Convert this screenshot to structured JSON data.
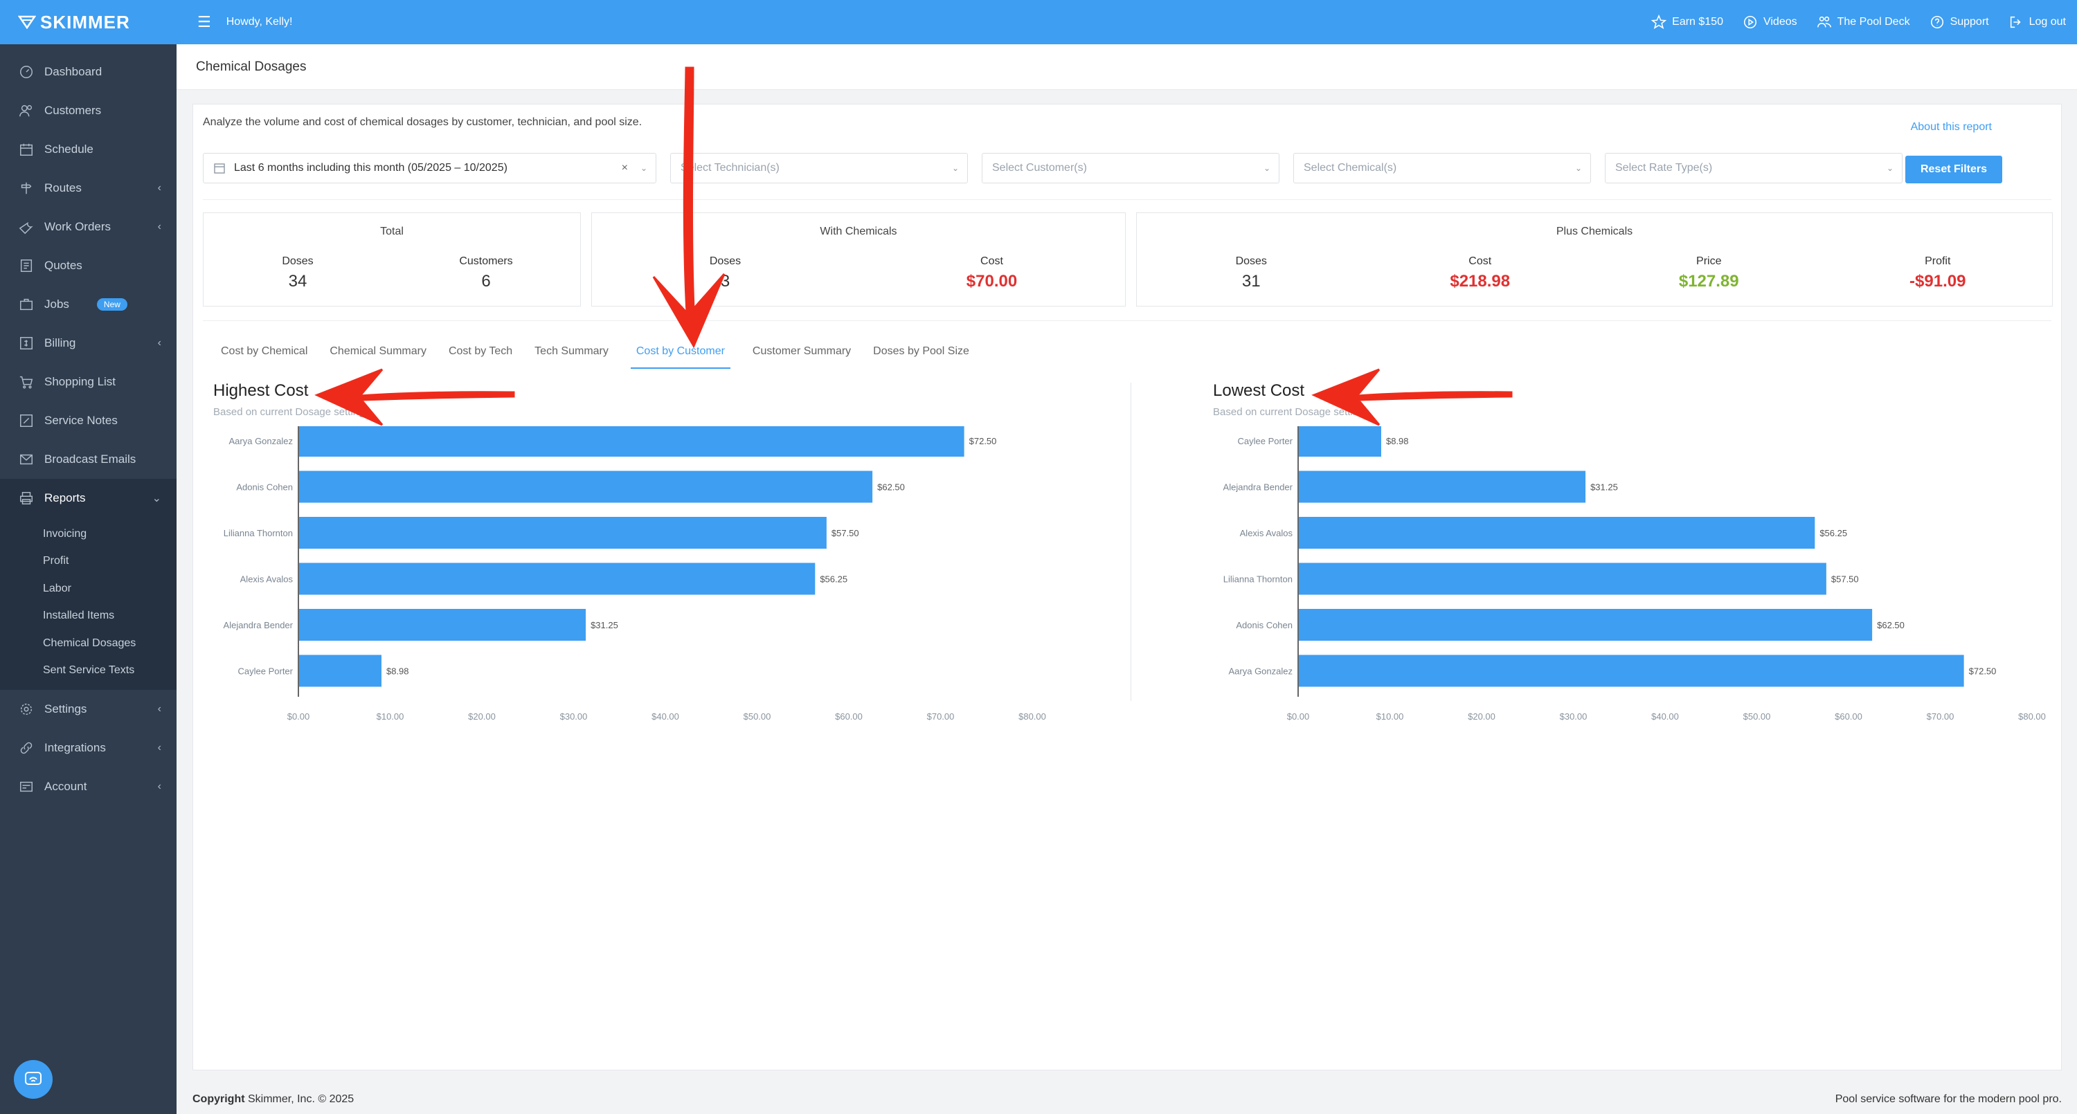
{
  "brand": {
    "name": "SKIMMER"
  },
  "topbar": {
    "greeting": "Howdy, Kelly!",
    "links": [
      {
        "label": "Earn $150",
        "icon": "star-icon"
      },
      {
        "label": "Videos",
        "icon": "play-icon"
      },
      {
        "label": "The Pool Deck",
        "icon": "people-icon"
      },
      {
        "label": "Support",
        "icon": "help-icon"
      },
      {
        "label": "Log out",
        "icon": "logout-icon"
      }
    ]
  },
  "sidebar": {
    "items": [
      {
        "label": "Dashboard",
        "icon": "dashboard-icon"
      },
      {
        "label": "Customers",
        "icon": "customers-icon"
      },
      {
        "label": "Schedule",
        "icon": "calendar-icon"
      },
      {
        "label": "Routes",
        "icon": "routes-icon",
        "chevron": true
      },
      {
        "label": "Work Orders",
        "icon": "wrench-icon",
        "chevron": true
      },
      {
        "label": "Quotes",
        "icon": "quote-icon"
      },
      {
        "label": "Jobs",
        "icon": "briefcase-icon",
        "badge": "New"
      },
      {
        "label": "Billing",
        "icon": "billing-icon",
        "chevron": true
      },
      {
        "label": "Shopping List",
        "icon": "cart-icon"
      },
      {
        "label": "Service Notes",
        "icon": "notes-icon"
      },
      {
        "label": "Broadcast Emails",
        "icon": "email-icon"
      },
      {
        "label": "Reports",
        "icon": "printer-icon",
        "chevron": true,
        "active": true
      }
    ],
    "sub_items": [
      "Invoicing",
      "Profit",
      "Labor",
      "Installed Items",
      "Chemical Dosages",
      "Sent Service Texts"
    ],
    "bottom_items": [
      {
        "label": "Settings",
        "icon": "gear-icon",
        "chevron": true
      },
      {
        "label": "Integrations",
        "icon": "link-icon",
        "chevron": true
      },
      {
        "label": "Account",
        "icon": "account-icon",
        "chevron": true
      }
    ]
  },
  "page": {
    "title": "Chemical Dosages",
    "intro": "Analyze the volume and cost of chemical dosages by customer, technician, and pool size.",
    "about_link": "About this report",
    "reset_button": "Reset Filters"
  },
  "filters": {
    "date_range": "Last 6 months including this month (05/2025 – 10/2025)",
    "technician_placeholder": "Select Technician(s)",
    "customer_placeholder": "Select Customer(s)",
    "chemical_placeholder": "Select Chemical(s)",
    "rate_type_placeholder": "Select Rate Type(s)"
  },
  "stats": {
    "total": {
      "title": "Total",
      "doses_label": "Doses",
      "doses": "34",
      "customers_label": "Customers",
      "customers": "6"
    },
    "with_chemicals": {
      "title": "With Chemicals",
      "doses_label": "Doses",
      "doses": "3",
      "cost_label": "Cost",
      "cost": "$70.00"
    },
    "plus_chemicals": {
      "title": "Plus Chemicals",
      "doses_label": "Doses",
      "doses": "31",
      "cost_label": "Cost",
      "cost": "$218.98",
      "price_label": "Price",
      "price": "$127.89",
      "profit_label": "Profit",
      "profit": "-$91.09"
    }
  },
  "tabs": [
    "Cost by Chemical",
    "Chemical Summary",
    "Cost by Tech",
    "Tech Summary",
    "Cost by Customer",
    "Customer Summary",
    "Doses by Pool Size"
  ],
  "active_tab": 4,
  "colors": {
    "accent": "#3e9ef1",
    "bar": "#3e9ef1",
    "negative": "#e03131",
    "positive": "#7fb431",
    "annotation": "#ee2b1b"
  },
  "chart_data": [
    {
      "type": "bar",
      "orientation": "horizontal",
      "title": "Highest Cost",
      "subtitle": "Based on current Dosage settings.",
      "categories": [
        "Aarya Gonzalez",
        "Adonis Cohen",
        "Lilianna Thornton",
        "Alexis Avalos",
        "Alejandra Bender",
        "Caylee Porter"
      ],
      "values": [
        72.5,
        62.5,
        57.5,
        56.25,
        31.25,
        8.98
      ],
      "value_labels": [
        "$72.50",
        "$62.50",
        "$57.50",
        "$56.25",
        "$31.25",
        "$8.98"
      ],
      "xlim": [
        0,
        80
      ],
      "xticks": [
        "$0.00",
        "$10.00",
        "$20.00",
        "$30.00",
        "$40.00",
        "$50.00",
        "$60.00",
        "$70.00",
        "$80.00"
      ]
    },
    {
      "type": "bar",
      "orientation": "horizontal",
      "title": "Lowest Cost",
      "subtitle": "Based on current Dosage settings.",
      "categories": [
        "Caylee Porter",
        "Alejandra Bender",
        "Alexis Avalos",
        "Lilianna Thornton",
        "Adonis Cohen",
        "Aarya Gonzalez"
      ],
      "values": [
        8.98,
        31.25,
        56.25,
        57.5,
        62.5,
        72.5
      ],
      "value_labels": [
        "$8.98",
        "$31.25",
        "$56.25",
        "$57.50",
        "$62.50",
        "$72.50"
      ],
      "xlim": [
        0,
        80
      ],
      "xticks": [
        "$0.00",
        "$10.00",
        "$20.00",
        "$30.00",
        "$40.00",
        "$50.00",
        "$60.00",
        "$70.00",
        "$80.00"
      ]
    }
  ],
  "footer": {
    "copyright_bold": "Copyright",
    "copyright_rest": " Skimmer, Inc. © 2025",
    "tagline": "Pool service software for the modern pool pro."
  }
}
